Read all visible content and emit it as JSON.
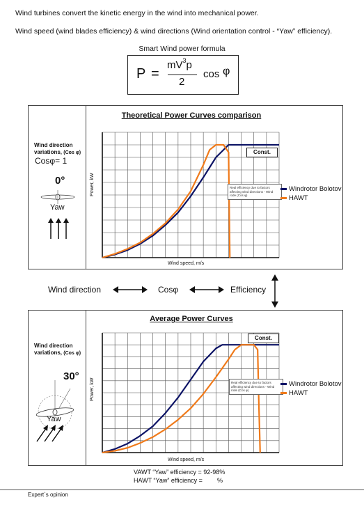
{
  "intro": {
    "line1": "Wind turbines convert the kinetic energy in the wind into mechanical power.",
    "line2": "Wind speed (wind blades efficiency) & wind directions (Wind orientation control - “Yaw” efficiency)."
  },
  "formula": {
    "title": "Smart Wind power formula",
    "lhs": "P",
    "eq": "=",
    "numerator": "mV",
    "numerator_exp": "3",
    "numerator_rho": "p",
    "denominator": "2",
    "cos": "cos",
    "phi": "φ"
  },
  "panel1": {
    "side": {
      "title": "Wind direction variations,",
      "title_cos": "(Cos φ)",
      "cos_label": "Cosφ= 1",
      "angle": "0°",
      "yaw": "Yaw"
    },
    "chart_title": "Theoretical Power Curves comparison",
    "const": "Const.",
    "note": "Real efficiency due to factors affecting wind directions - Wind rode (Cos φ)",
    "y_label": "Power, kW",
    "x_label": "Wind speed, m/s"
  },
  "middle": {
    "wind_direction": "Wind direction",
    "cos": "Cosφ",
    "efficiency": "Efficiency"
  },
  "panel2": {
    "side": {
      "title": "Wind direction variations,",
      "title_cos": "(Cos φ)",
      "angle": "30°",
      "yaw": "Yaw"
    },
    "chart_title": "Average Power Curves",
    "const": "Const.",
    "note": "Real efficiency due to factors affecting wind directions - Wind rode (Cos φ)",
    "y_label": "Power, kW",
    "x_label": "Wind speed, m/s"
  },
  "legend": {
    "windrotor": "Windrotor Bolotov",
    "hawt": "HAWT"
  },
  "colors": {
    "windrotor": "#0d1466",
    "hawt": "#f07a1a"
  },
  "efficiency": {
    "vawt": "VAWT “Yaw” efficiency = 92-98%",
    "hawt_label": "HAWT “Yaw” efficiency =",
    "hawt_unit": "%"
  },
  "footer": "Expert`s opinion",
  "chart_data": [
    {
      "type": "line",
      "title": "Theoretical Power Curves comparison",
      "xlabel": "Wind speed, m/s",
      "ylabel": "Power, kW",
      "xlim": [
        0,
        14
      ],
      "ylim": [
        0,
        10
      ],
      "grid": true,
      "legend": "right",
      "series": [
        {
          "name": "Windrotor Bolotov",
          "x": [
            0,
            1,
            2,
            3,
            4,
            5,
            6,
            7,
            8,
            9,
            10,
            11,
            12,
            13,
            14
          ],
          "y": [
            0,
            0.25,
            0.6,
            1.1,
            1.75,
            2.6,
            3.6,
            4.9,
            6.4,
            8.0,
            9.0,
            9.0,
            9.0,
            9.0,
            9.0
          ]
        },
        {
          "name": "HAWT",
          "x": [
            0,
            1,
            2,
            3,
            4,
            5,
            6,
            7,
            8,
            8.5,
            9,
            9.6,
            10,
            10.05,
            10.1
          ],
          "y": [
            0,
            0.3,
            0.7,
            1.2,
            1.9,
            2.75,
            3.85,
            5.3,
            7.4,
            8.6,
            9.0,
            9.0,
            8.4,
            4.0,
            0
          ]
        }
      ]
    },
    {
      "type": "line",
      "title": "Average Power Curves",
      "xlabel": "Wind speed, m/s",
      "ylabel": "Power, kW",
      "xlim": [
        0,
        14
      ],
      "ylim": [
        0,
        10
      ],
      "grid": true,
      "legend": "right",
      "series": [
        {
          "name": "Windrotor Bolotov",
          "x": [
            0,
            1,
            2,
            3,
            4,
            5,
            6,
            7,
            8,
            9,
            9.5,
            10,
            11,
            12,
            13,
            14
          ],
          "y": [
            0,
            0.3,
            0.75,
            1.4,
            2.2,
            3.3,
            4.6,
            6.1,
            7.6,
            8.7,
            9.0,
            9.0,
            9.0,
            9.0,
            9.0,
            9.0
          ]
        },
        {
          "name": "HAWT",
          "x": [
            0,
            1,
            2,
            3,
            4,
            5,
            6,
            7,
            8,
            9,
            10,
            10.5,
            11,
            11.5,
            12,
            12.3,
            12.4,
            12.5
          ],
          "y": [
            0,
            0.15,
            0.4,
            0.8,
            1.3,
            1.95,
            2.75,
            3.7,
            4.9,
            6.3,
            7.8,
            8.6,
            9.0,
            9.0,
            9.0,
            8.6,
            4.0,
            0
          ]
        }
      ]
    }
  ]
}
